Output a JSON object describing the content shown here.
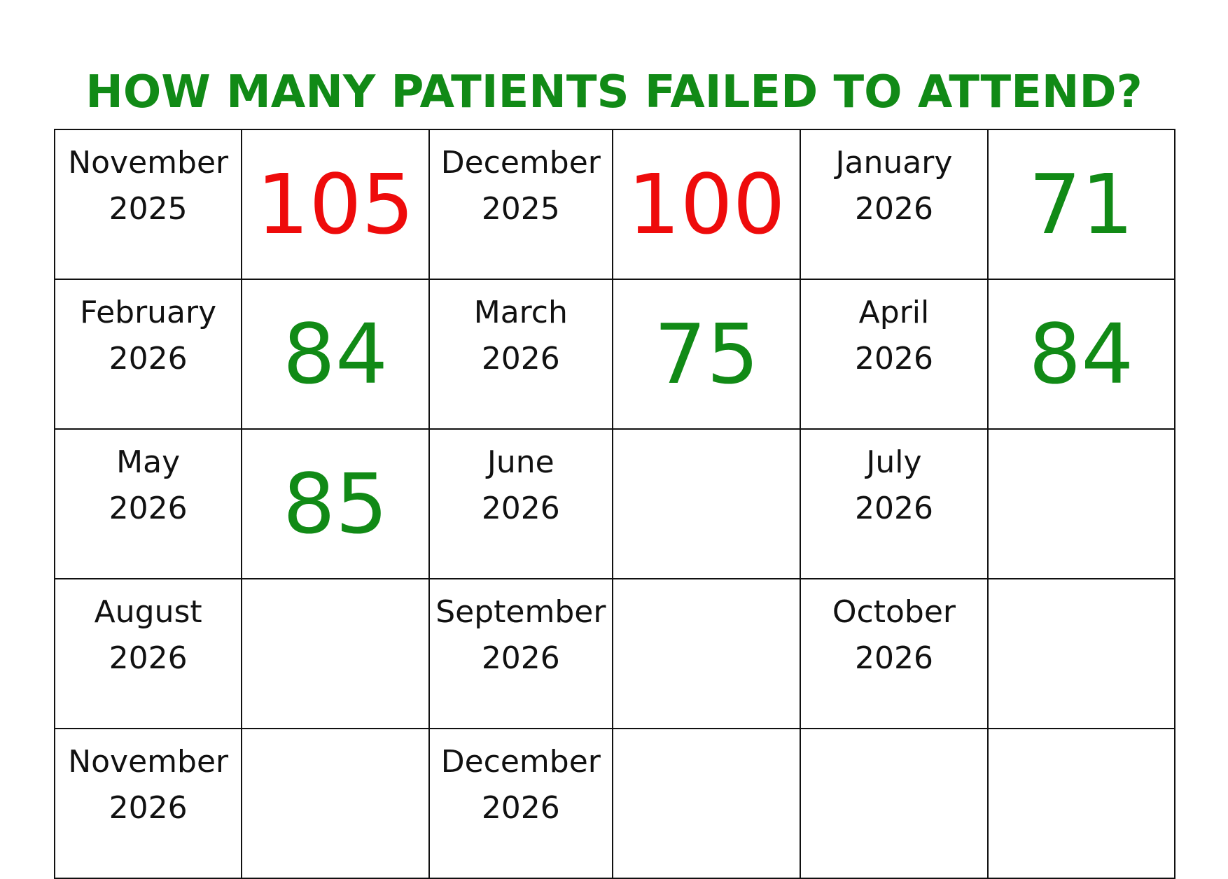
{
  "title": "HOW MANY PATIENTS FAILED TO ATTEND?",
  "colors": {
    "title": "#118a16",
    "over_target": "#ee0b0b",
    "under_target": "#118a16",
    "grid_line": "#111111"
  },
  "months": [
    {
      "month": "November",
      "year": "2025",
      "value": "105",
      "status": "over_target"
    },
    {
      "month": "December",
      "year": "2025",
      "value": "100",
      "status": "over_target"
    },
    {
      "month": "January",
      "year": "2026",
      "value": "71",
      "status": "under_target"
    },
    {
      "month": "February",
      "year": "2026",
      "value": "84",
      "status": "under_target"
    },
    {
      "month": "March",
      "year": "2026",
      "value": "75",
      "status": "under_target"
    },
    {
      "month": "April",
      "year": "2026",
      "value": "84",
      "status": "under_target"
    },
    {
      "month": "May",
      "year": "2026",
      "value": "85",
      "status": "under_target"
    },
    {
      "month": "June",
      "year": "2026",
      "value": "",
      "status": ""
    },
    {
      "month": "July",
      "year": "2026",
      "value": "",
      "status": ""
    },
    {
      "month": "August",
      "year": "2026",
      "value": "",
      "status": ""
    },
    {
      "month": "September",
      "year": "2026",
      "value": "",
      "status": ""
    },
    {
      "month": "October",
      "year": "2026",
      "value": "",
      "status": ""
    },
    {
      "month": "November",
      "year": "2026",
      "value": "",
      "status": ""
    },
    {
      "month": "December",
      "year": "2026",
      "value": "",
      "status": ""
    }
  ]
}
